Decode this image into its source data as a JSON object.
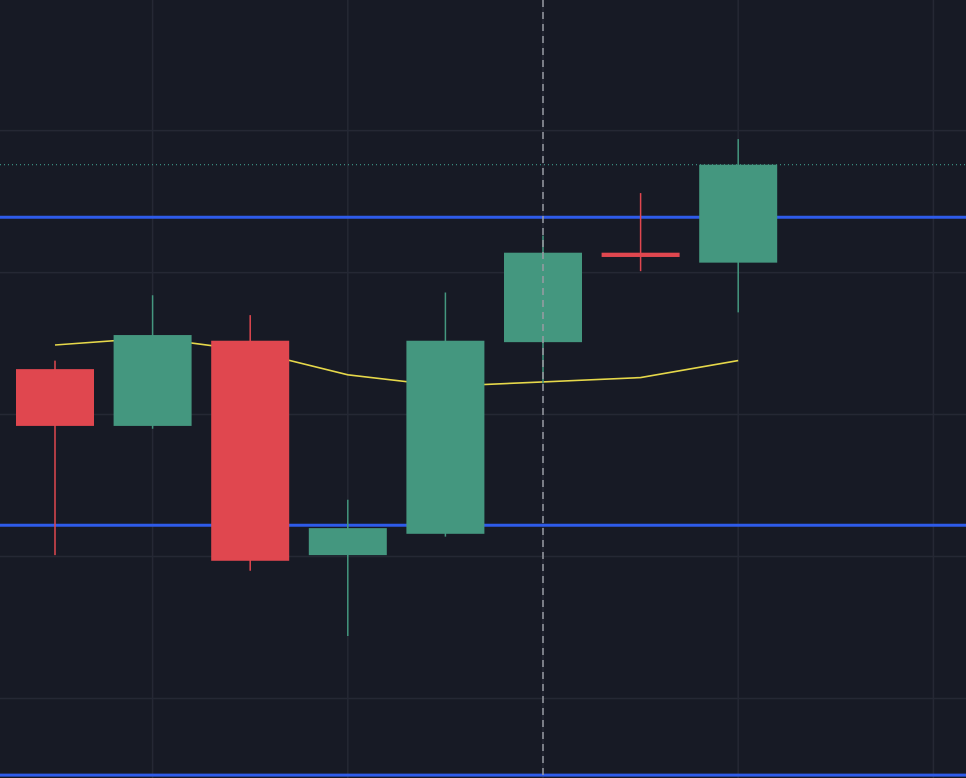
{
  "chart_data": {
    "type": "candlestick",
    "categories": [
      null,
      null,
      null,
      null,
      null,
      null,
      null,
      null
    ],
    "series": [
      {
        "open": [
          3.32,
          2.92,
          3.52,
          2.01,
          2.16,
          3.51,
          4.14,
          4.07
        ],
        "high": [
          3.38,
          3.84,
          3.7,
          2.4,
          3.86,
          4.26,
          4.56,
          4.94
        ],
        "low": [
          2.01,
          2.9,
          1.9,
          1.44,
          2.14,
          3.22,
          4.01,
          3.72
        ],
        "close": [
          2.92,
          3.56,
          1.97,
          2.2,
          3.52,
          4.14,
          4.11,
          4.76
        ],
        "up_color": "#44977f",
        "down_color": "#e0474f"
      },
      {
        "type": "line",
        "values": [
          3.49,
          3.54,
          3.45,
          3.28,
          3.2,
          3.23,
          3.26,
          3.38
        ],
        "color": "#e6d84a"
      }
    ],
    "ylim": [
      0.44,
      5.92
    ],
    "ygrid": [
      1,
      2,
      3,
      4,
      5
    ],
    "grid": true,
    "hlines": [
      {
        "value": 4.39,
        "color": "#2e5bea"
      },
      {
        "value": 2.22,
        "color": "#2e5bea"
      },
      {
        "value": 0.46,
        "color": "#2e5bea"
      }
    ],
    "price_line": {
      "value": 4.76,
      "color": "#3f9a8a"
    },
    "crosshair_index": 5
  }
}
